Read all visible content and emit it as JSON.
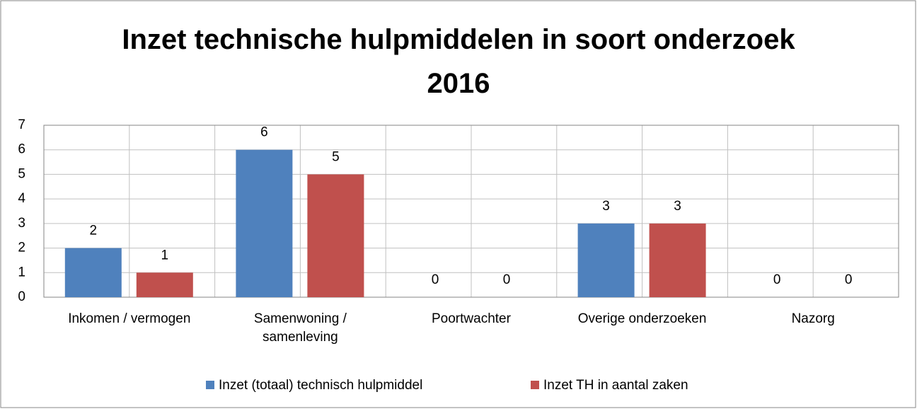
{
  "chart_data": {
    "type": "bar",
    "title": [
      "Inzet technische hulpmiddelen in soort onderzoek",
      "2016"
    ],
    "categories": [
      "Inkomen / vermogen",
      "Samenwoning / samenleving",
      "Poortwachter",
      "Overige onderzoeken",
      "Nazorg"
    ],
    "series": [
      {
        "name": "Inzet (totaal) technisch hulpmiddel",
        "color": "#4f81bd",
        "values": [
          2,
          6,
          0,
          3,
          0
        ]
      },
      {
        "name": "Inzet TH in aantal zaken",
        "color": "#c0504d",
        "values": [
          1,
          5,
          0,
          3,
          0
        ]
      }
    ],
    "ylim": [
      0,
      7
    ],
    "yticks": [
      0,
      1,
      2,
      3,
      4,
      5,
      6,
      7
    ],
    "grid": true,
    "legend": "bottom"
  }
}
